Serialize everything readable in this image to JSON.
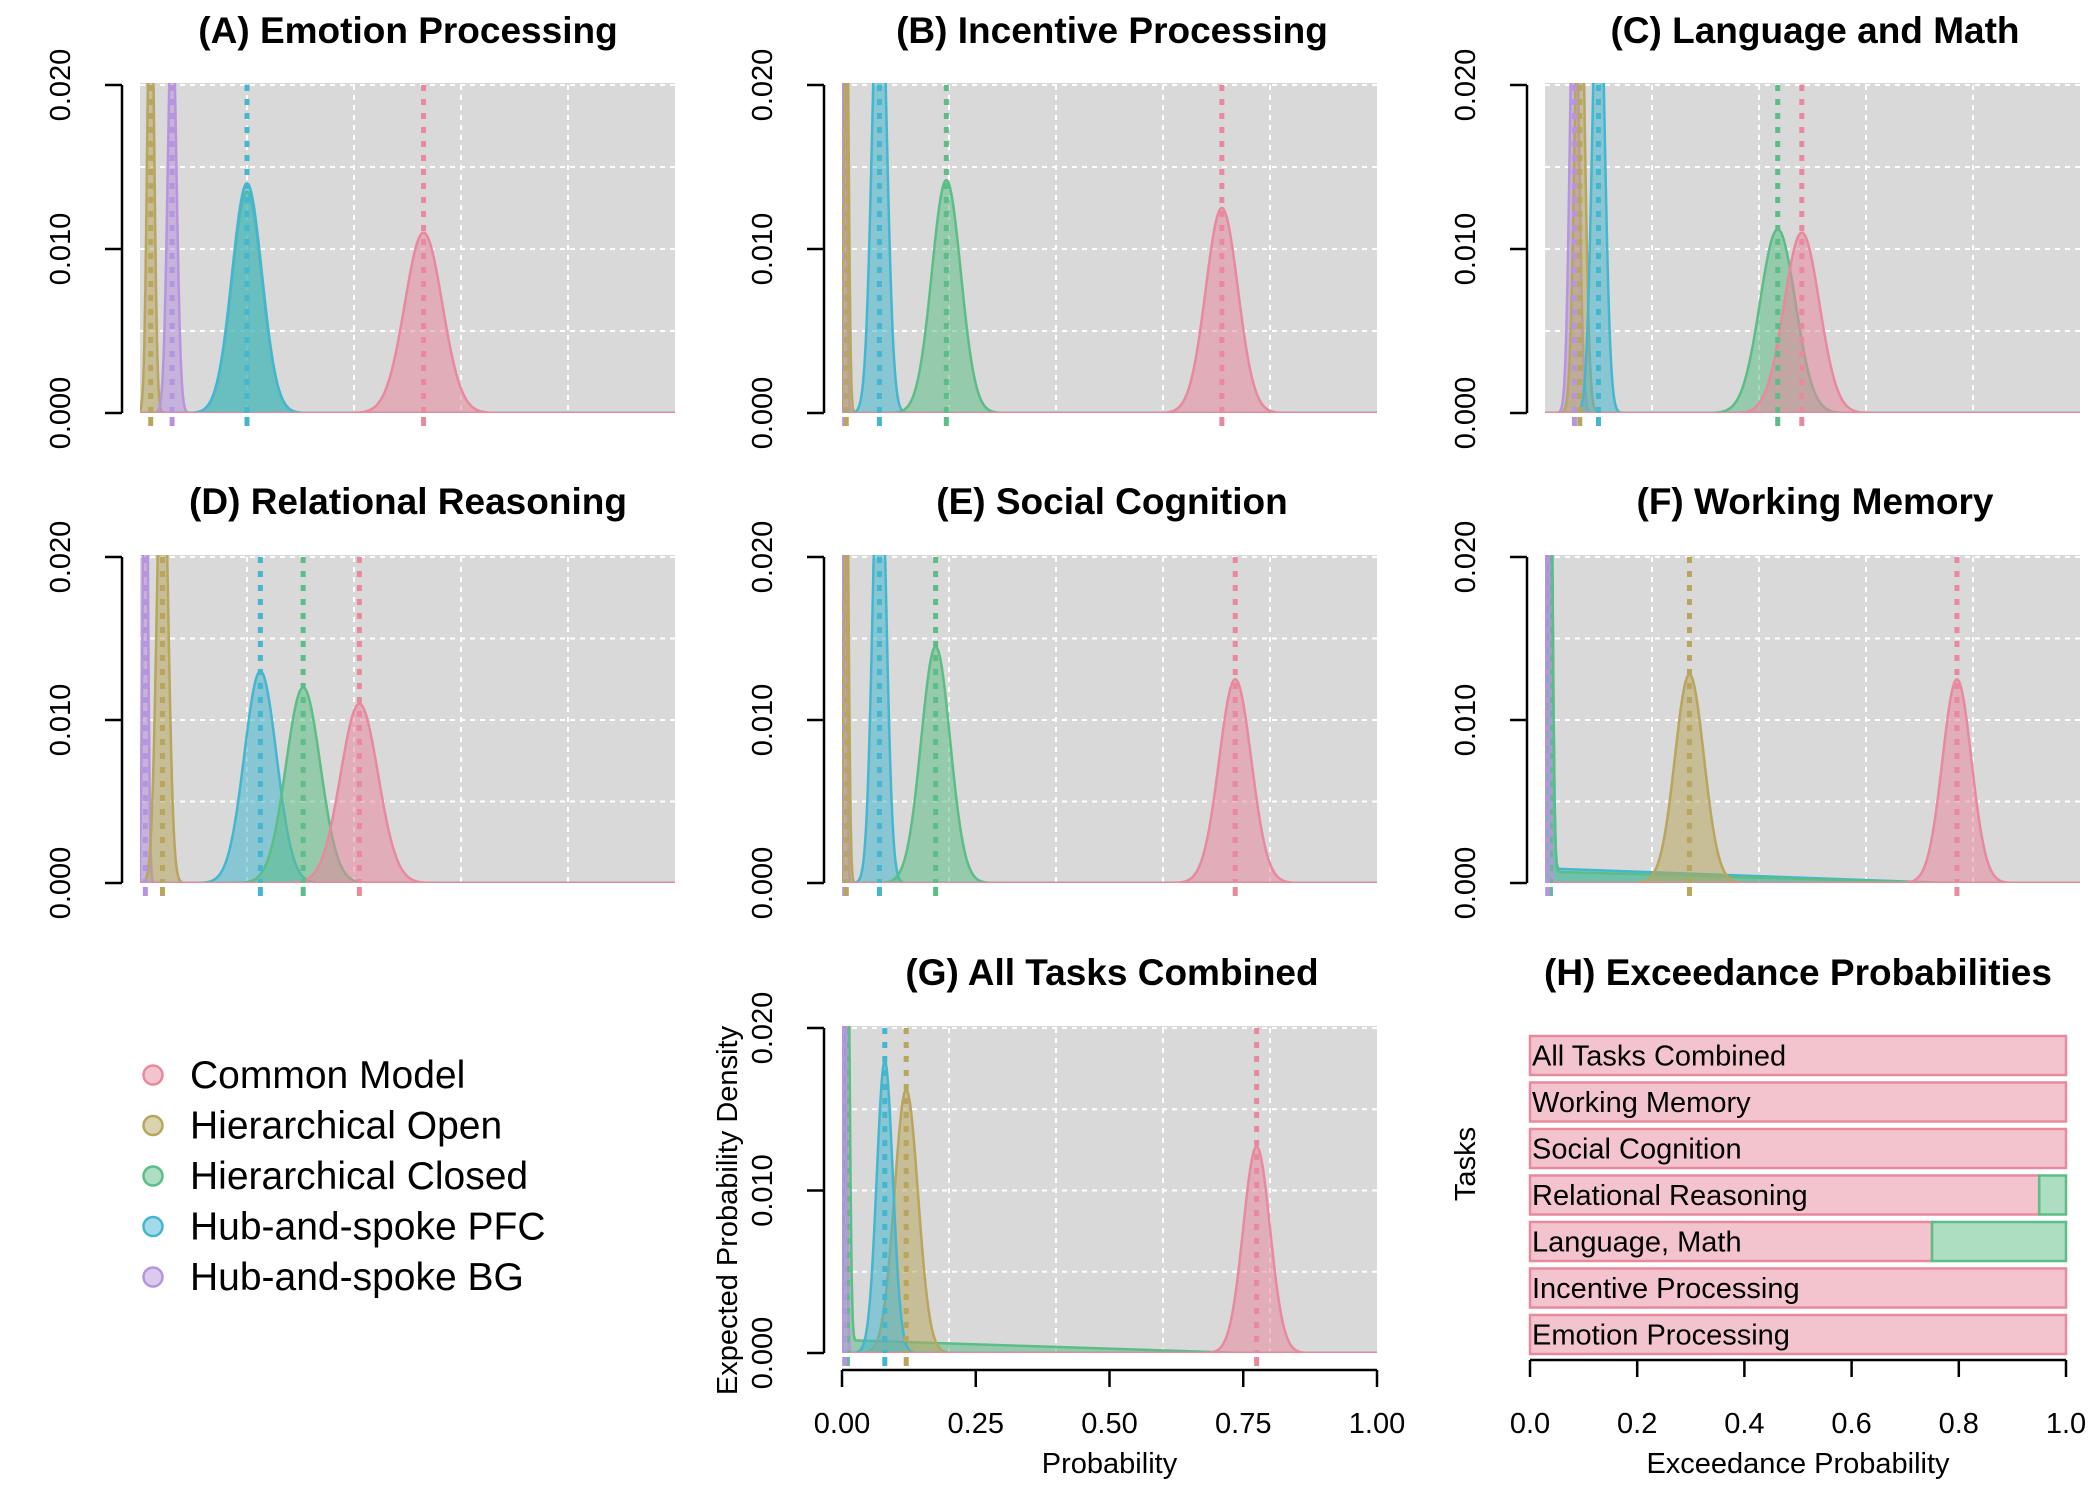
{
  "colors": {
    "Common Model": "#e8899e",
    "Hierarchical Open": "#b8a55e",
    "Hierarchical Closed": "#5cbd86",
    "Hub-and-spoke PFC": "#45b6cf",
    "Hub-and-spoke BG": "#b794de"
  },
  "legend": {
    "items": [
      "Common Model",
      "Hierarchical Open",
      "Hierarchical Closed",
      "Hub-and-spoke PFC",
      "Hub-and-spoke BG"
    ]
  },
  "chart_data": [
    {
      "id": "A",
      "type": "area",
      "title": "(A) Emotion Processing",
      "xlim": [
        0,
        1
      ],
      "ylim": [
        0,
        0.02
      ],
      "yticks": [
        "0.000",
        "0.010",
        "0.020"
      ],
      "xlabel": "",
      "ylabel": "",
      "series": [
        {
          "name": "Hierarchical Open",
          "mean": 0.02,
          "sd": 0.006,
          "peak": 0.03
        },
        {
          "name": "Hub-and-spoke BG",
          "mean": 0.06,
          "sd": 0.008,
          "peak": 0.025
        },
        {
          "name": "Hierarchical Closed",
          "mean": 0.2,
          "sd": 0.028,
          "peak": 0.0135
        },
        {
          "name": "Hub-and-spoke PFC",
          "mean": 0.2,
          "sd": 0.028,
          "peak": 0.014
        },
        {
          "name": "Common Model",
          "mean": 0.53,
          "sd": 0.035,
          "peak": 0.011
        }
      ]
    },
    {
      "id": "B",
      "type": "area",
      "title": "(B) Incentive Processing",
      "xlim": [
        0,
        1
      ],
      "ylim": [
        0,
        0.02
      ],
      "yticks": [
        "0.000",
        "0.010",
        "0.020"
      ],
      "xlabel": "",
      "ylabel": "",
      "series": [
        {
          "name": "Hub-and-spoke BG",
          "mean": 0.005,
          "sd": 0.003,
          "peak": 0.04
        },
        {
          "name": "Hierarchical Open",
          "mean": 0.008,
          "sd": 0.004,
          "peak": 0.03
        },
        {
          "name": "Hub-and-spoke PFC",
          "mean": 0.07,
          "sd": 0.013,
          "peak": 0.03
        },
        {
          "name": "Hierarchical Closed",
          "mean": 0.195,
          "sd": 0.027,
          "peak": 0.0142
        },
        {
          "name": "Common Model",
          "mean": 0.71,
          "sd": 0.03,
          "peak": 0.0125
        }
      ]
    },
    {
      "id": "C",
      "type": "area",
      "title": "(C) Language and Math",
      "xlim": [
        0,
        1
      ],
      "ylim": [
        0,
        0.02
      ],
      "yticks": [
        "0.000",
        "0.010",
        "0.020"
      ],
      "xlabel": "",
      "ylabel": "",
      "series": [
        {
          "name": "Hub-and-spoke BG",
          "mean": 0.055,
          "sd": 0.008,
          "peak": 0.03
        },
        {
          "name": "Hierarchical Open",
          "mean": 0.065,
          "sd": 0.009,
          "peak": 0.03
        },
        {
          "name": "Hub-and-spoke PFC",
          "mean": 0.1,
          "sd": 0.011,
          "peak": 0.03
        },
        {
          "name": "Hierarchical Closed",
          "mean": 0.435,
          "sd": 0.033,
          "peak": 0.0112
        },
        {
          "name": "Common Model",
          "mean": 0.48,
          "sd": 0.033,
          "peak": 0.011
        }
      ]
    },
    {
      "id": "D",
      "type": "area",
      "title": "(D) Relational Reasoning",
      "xlim": [
        0,
        1
      ],
      "ylim": [
        0,
        0.02
      ],
      "yticks": [
        "0.000",
        "0.010",
        "0.020"
      ],
      "xlabel": "",
      "ylabel": "",
      "series": [
        {
          "name": "Hub-and-spoke BG",
          "mean": 0.01,
          "sd": 0.004,
          "peak": 0.04
        },
        {
          "name": "Hierarchical Open",
          "mean": 0.042,
          "sd": 0.01,
          "peak": 0.03
        },
        {
          "name": "Hub-and-spoke PFC",
          "mean": 0.225,
          "sd": 0.03,
          "peak": 0.013
        },
        {
          "name": "Hierarchical Closed",
          "mean": 0.305,
          "sd": 0.032,
          "peak": 0.012
        },
        {
          "name": "Common Model",
          "mean": 0.41,
          "sd": 0.035,
          "peak": 0.011
        }
      ]
    },
    {
      "id": "E",
      "type": "area",
      "title": "(E) Social Cognition",
      "xlim": [
        0,
        1
      ],
      "ylim": [
        0,
        0.02
      ],
      "yticks": [
        "0.000",
        "0.010",
        "0.020"
      ],
      "xlabel": "",
      "ylabel": "",
      "series": [
        {
          "name": "Hub-and-spoke BG",
          "mean": 0.005,
          "sd": 0.003,
          "peak": 0.04
        },
        {
          "name": "Hierarchical Open",
          "mean": 0.008,
          "sd": 0.004,
          "peak": 0.03
        },
        {
          "name": "Hub-and-spoke PFC",
          "mean": 0.07,
          "sd": 0.012,
          "peak": 0.03
        },
        {
          "name": "Hierarchical Closed",
          "mean": 0.175,
          "sd": 0.027,
          "peak": 0.0145
        },
        {
          "name": "Common Model",
          "mean": 0.735,
          "sd": 0.03,
          "peak": 0.0125
        }
      ]
    },
    {
      "id": "F",
      "type": "area",
      "title": "(F) Working Memory",
      "xlim": [
        0,
        1
      ],
      "ylim": [
        0,
        0.02
      ],
      "yticks": [
        "0.000",
        "0.010",
        "0.020"
      ],
      "xlabel": "",
      "ylabel": "",
      "series": [
        {
          "name": "Hub-and-spoke PFC",
          "mean": 0.01,
          "sd": 0.004,
          "peak": 0.03,
          "tail": 0.0009
        },
        {
          "name": "Hierarchical Closed",
          "mean": 0.01,
          "sd": 0.004,
          "peak": 0.03,
          "tail": 0.0007
        },
        {
          "name": "Hub-and-spoke BG",
          "mean": 0.005,
          "sd": 0.003,
          "peak": 0.04
        },
        {
          "name": "Hierarchical Open",
          "mean": 0.27,
          "sd": 0.027,
          "peak": 0.0128
        },
        {
          "name": "Common Model",
          "mean": 0.77,
          "sd": 0.027,
          "peak": 0.0125
        }
      ]
    },
    {
      "id": "G",
      "type": "area",
      "title": "(G) All Tasks Combined",
      "xlim": [
        0,
        1
      ],
      "ylim": [
        0,
        0.02
      ],
      "yticks": [
        "0.000",
        "0.010",
        "0.020"
      ],
      "xticks": [
        "0.00",
        "0.25",
        "0.50",
        "0.75",
        "1.00"
      ],
      "xlabel": "Probability",
      "ylabel": "Expected Probability Density",
      "series": [
        {
          "name": "Hierarchical Closed",
          "mean": 0.01,
          "sd": 0.004,
          "peak": 0.03,
          "tail": 0.0008
        },
        {
          "name": "Hub-and-spoke BG",
          "mean": 0.005,
          "sd": 0.003,
          "peak": 0.04
        },
        {
          "name": "Hierarchical Open",
          "mean": 0.12,
          "sd": 0.022,
          "peak": 0.0162
        },
        {
          "name": "Hub-and-spoke PFC",
          "mean": 0.08,
          "sd": 0.015,
          "peak": 0.018
        },
        {
          "name": "Common Model",
          "mean": 0.775,
          "sd": 0.025,
          "peak": 0.0127
        }
      ]
    },
    {
      "id": "H",
      "type": "bar",
      "orientation": "horizontal",
      "stacked": true,
      "title": "(H) Exceedance Probabilities",
      "xlabel": "Exceedance Probability",
      "ylabel": "Tasks",
      "xlim": [
        0,
        1
      ],
      "xticks": [
        "0.0",
        "0.2",
        "0.4",
        "0.6",
        "0.8",
        "1.0"
      ],
      "categories": [
        "All Tasks Combined",
        "Working Memory",
        "Social Cognition",
        "Relational Reasoning",
        "Language, Math",
        "Incentive Processing",
        "Emotion Processing"
      ],
      "series": [
        {
          "name": "Common Model",
          "values": [
            1.0,
            1.0,
            1.0,
            0.95,
            0.75,
            1.0,
            1.0
          ]
        },
        {
          "name": "Hierarchical Closed",
          "values": [
            0.0,
            0.0,
            0.0,
            0.05,
            0.25,
            0.0,
            0.0
          ]
        }
      ]
    }
  ]
}
